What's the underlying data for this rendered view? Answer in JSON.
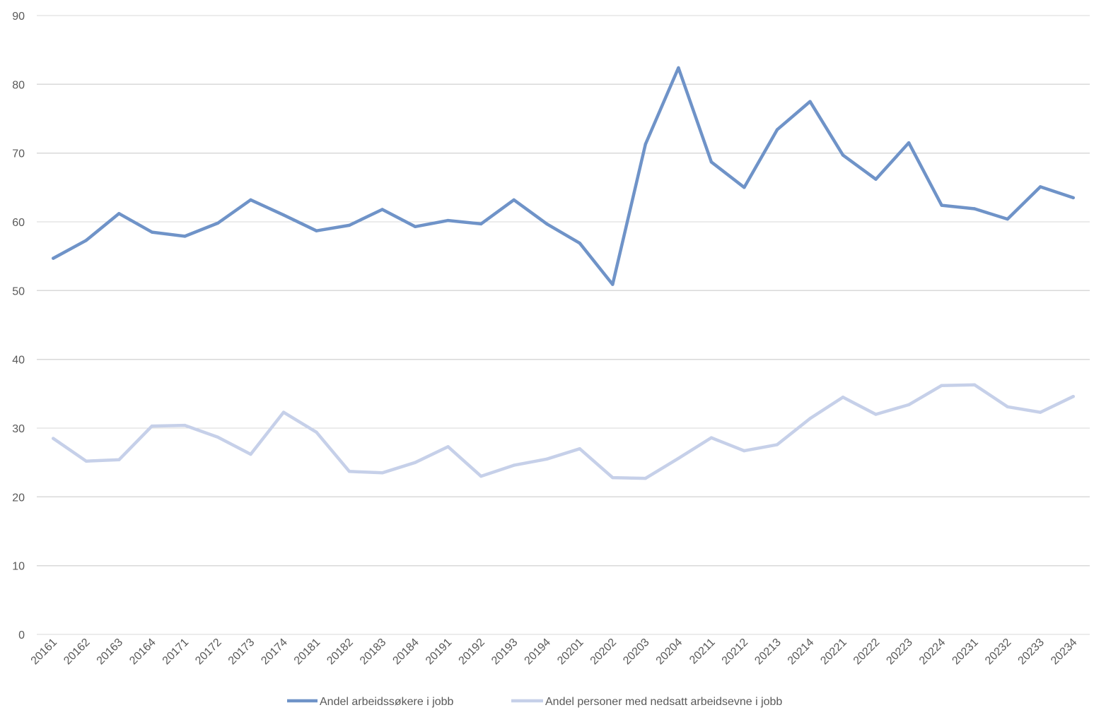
{
  "chart_data": {
    "type": "line",
    "categories": [
      "20161",
      "20162",
      "20163",
      "20164",
      "20171",
      "20172",
      "20173",
      "20174",
      "20181",
      "20182",
      "20183",
      "20184",
      "20191",
      "20192",
      "20193",
      "20194",
      "20201",
      "20202",
      "20203",
      "20204",
      "20211",
      "20212",
      "20213",
      "20214",
      "20221",
      "20222",
      "20223",
      "20224",
      "20231",
      "20232",
      "20233",
      "20234"
    ],
    "series": [
      {
        "name": "Andel arbeidssøkere i jobb",
        "color": "#6f93c8",
        "values": [
          54.7,
          57.3,
          61.2,
          58.5,
          57.9,
          59.8,
          63.2,
          61.0,
          58.7,
          59.5,
          61.8,
          59.3,
          60.2,
          59.7,
          63.2,
          59.7,
          56.9,
          50.9,
          71.3,
          82.4,
          68.7,
          65.0,
          73.4,
          77.5,
          69.7,
          66.2,
          71.5,
          62.4,
          61.9,
          60.4,
          65.1,
          63.5
        ]
      },
      {
        "name": "Andel personer med nedsatt arbeidsevne i jobb",
        "color": "#c6d0e9",
        "values": [
          28.5,
          25.2,
          25.4,
          30.3,
          30.4,
          28.7,
          26.2,
          32.3,
          29.4,
          23.7,
          23.5,
          25.0,
          27.3,
          23.0,
          24.6,
          25.5,
          27.0,
          22.8,
          22.7,
          25.6,
          28.6,
          26.7,
          27.6,
          31.4,
          34.5,
          32.0,
          33.4,
          36.2,
          36.3,
          33.1,
          32.3,
          34.6
        ]
      }
    ],
    "ylim": [
      0,
      90
    ],
    "yticks": [
      0,
      10,
      20,
      30,
      40,
      50,
      60,
      70,
      80,
      90
    ],
    "grid": true,
    "legend": "bottom",
    "text_color": "#595959",
    "grid_color": "#d9d9d9"
  }
}
